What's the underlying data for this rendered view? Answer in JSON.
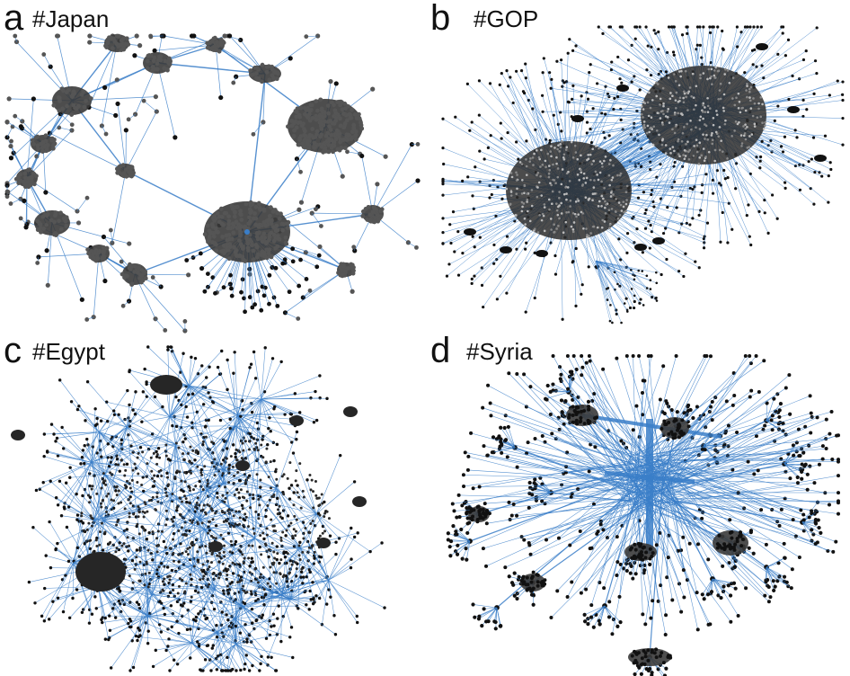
{
  "panels": [
    {
      "letter": "a",
      "tag": "#Japan"
    },
    {
      "letter": "b",
      "tag": "#GOP"
    },
    {
      "letter": "c",
      "tag": "#Egypt"
    },
    {
      "letter": "d",
      "tag": "#Syria"
    }
  ],
  "colors": {
    "edge": "#3a7ec8",
    "node_dark": "#111111",
    "node_grey": "#555555",
    "node_mid": "#888888",
    "background": "#ffffff"
  }
}
